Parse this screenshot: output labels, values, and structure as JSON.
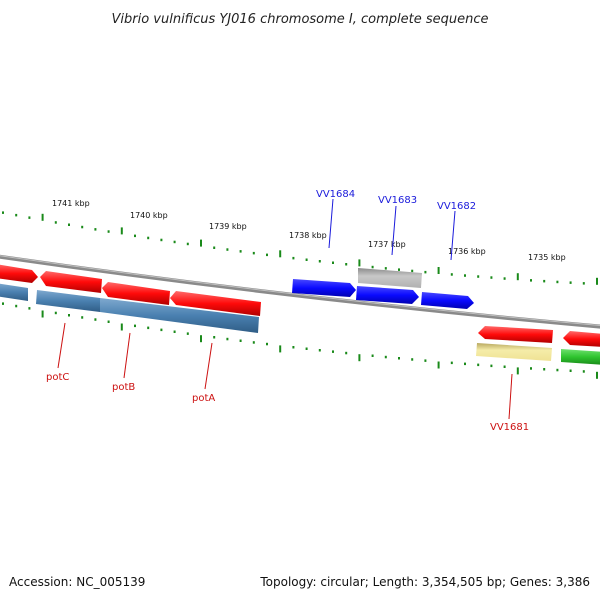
{
  "title": "Vibrio vulnificus YJ016 chromosome I, complete sequence",
  "footer": {
    "accession": "Accession: NC_005139",
    "summary": "Topology: circular; Length: 3,354,505 bp; Genes: 3,386"
  },
  "scale_labels": [
    "1741 kbp",
    "1740 kbp",
    "1739 kbp",
    "1738 kbp",
    "1737 kbp",
    "1736 kbp",
    "1735 kbp"
  ],
  "genes": [
    {
      "id": "vv1684",
      "label": "VV1684",
      "color": "#1a1adb"
    },
    {
      "id": "vv1683",
      "label": "VV1683",
      "color": "#1a1adb"
    },
    {
      "id": "vv1682",
      "label": "VV1682",
      "color": "#1a1adb"
    },
    {
      "id": "potc",
      "label": "potC",
      "color": "#cc1111"
    },
    {
      "id": "potb",
      "label": "potB",
      "color": "#cc1111"
    },
    {
      "id": "pota",
      "label": "potA",
      "color": "#cc1111"
    },
    {
      "id": "vv1681",
      "label": "VV1681",
      "color": "#cc1111"
    }
  ],
  "colors": {
    "backbone": "#808080",
    "tick_green": "#1a8a1a",
    "feature_blue": "#0a0aff",
    "feature_red": "#ff0a0a",
    "feature_steelblue": "#4a80b0",
    "feature_gray": "#a8a8a8",
    "feature_yellow": "#f2e79a",
    "feature_green": "#2ec42e"
  }
}
